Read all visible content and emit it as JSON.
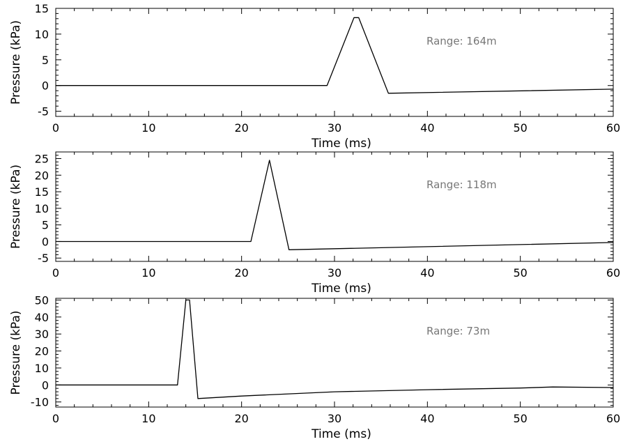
{
  "chart_data": [
    {
      "type": "line",
      "xlabel": "Time (ms)",
      "ylabel": "Pressure (kPa)",
      "annotation": "Range: 164m",
      "xlim": [
        0,
        60
      ],
      "ylim": [
        -6,
        15
      ],
      "xticks": [
        0,
        10,
        20,
        30,
        40,
        50,
        60
      ],
      "yticks": [
        -5,
        0,
        5,
        10,
        15
      ],
      "series": [
        {
          "x": [
            0,
            29.2,
            32.1,
            32.6,
            35.8,
            60
          ],
          "y": [
            0,
            0,
            13.2,
            13.2,
            -1.5,
            -0.7
          ]
        }
      ]
    },
    {
      "type": "line",
      "xlabel": "Time (ms)",
      "ylabel": "Pressure (kPa)",
      "annotation": "Range: 118m",
      "xlim": [
        0,
        60
      ],
      "ylim": [
        -6,
        27
      ],
      "xticks": [
        0,
        10,
        20,
        30,
        40,
        50,
        60
      ],
      "yticks": [
        -5,
        0,
        5,
        10,
        15,
        20,
        25
      ],
      "series": [
        {
          "x": [
            0,
            21.0,
            23.0,
            25.1,
            60
          ],
          "y": [
            0,
            0,
            24.5,
            -2.5,
            -0.3
          ]
        }
      ]
    },
    {
      "type": "line",
      "xlabel": "Time (ms)",
      "ylabel": "Pressure (kPa)",
      "annotation": "Range: 73m",
      "xlim": [
        0,
        60
      ],
      "ylim": [
        -13,
        51
      ],
      "xticks": [
        0,
        10,
        20,
        30,
        40,
        50,
        60
      ],
      "yticks": [
        -10,
        0,
        10,
        20,
        30,
        40,
        50
      ],
      "series": [
        {
          "x": [
            0,
            13.1,
            14.0,
            14.4,
            15.3,
            20,
            30,
            40,
            50,
            53.5,
            60
          ],
          "y": [
            0,
            0,
            50,
            50,
            -8,
            -6.5,
            -4,
            -2.8,
            -1.8,
            -1.2,
            -1.5
          ]
        }
      ]
    }
  ]
}
